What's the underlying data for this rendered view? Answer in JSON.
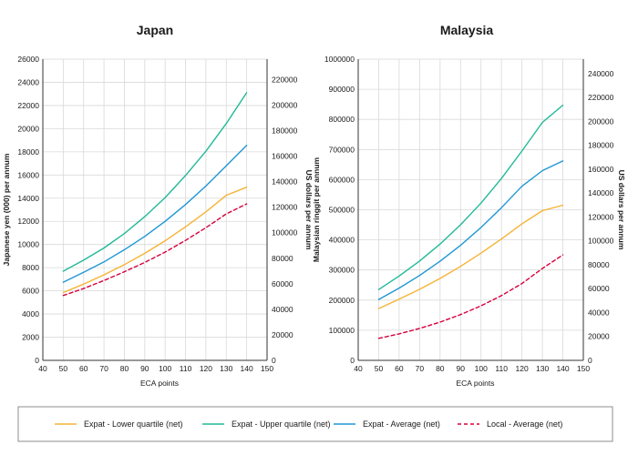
{
  "legend": [
    {
      "name": "Expat - Lower quartile (net)",
      "color": "#F5B335",
      "dash": false
    },
    {
      "name": "Expat - Upper quartile (net)",
      "color": "#22B998",
      "dash": false
    },
    {
      "name": "Expat - Average (net)",
      "color": "#1F97D4",
      "dash": false
    },
    {
      "name": "Local - Average (net)",
      "color": "#D6003C",
      "dash": true
    }
  ],
  "chart_data": [
    {
      "type": "line",
      "title": "Japan",
      "xlabel": "ECA points",
      "ylabel": "Japanese yen (000) per annum",
      "y2label": "US dollars per annum",
      "xlim": [
        40,
        150
      ],
      "ylim": [
        0,
        26000
      ],
      "y2lim": [
        0,
        236000
      ],
      "xticks": [
        40,
        50,
        60,
        70,
        80,
        90,
        100,
        110,
        120,
        130,
        140,
        150
      ],
      "yticks": [
        0,
        2000,
        4000,
        6000,
        8000,
        10000,
        12000,
        14000,
        16000,
        18000,
        20000,
        22000,
        24000,
        26000
      ],
      "y2ticks": [
        0,
        20000,
        40000,
        60000,
        80000,
        100000,
        120000,
        140000,
        160000,
        180000,
        200000,
        220000
      ],
      "grid": true,
      "x": [
        50,
        60,
        70,
        80,
        90,
        100,
        110,
        120,
        130,
        140
      ],
      "series": [
        {
          "name": "Expat - Lower quartile (net)",
          "values": [
            5850,
            6580,
            7380,
            8260,
            9240,
            10320,
            11520,
            12820,
            14250,
            14950
          ]
        },
        {
          "name": "Expat - Upper quartile (net)",
          "values": [
            7700,
            8650,
            9700,
            10950,
            12400,
            14050,
            15950,
            18050,
            20450,
            23100
          ]
        },
        {
          "name": "Expat - Average (net)",
          "values": [
            6750,
            7600,
            8500,
            9550,
            10700,
            12000,
            13450,
            15050,
            16800,
            18550
          ]
        },
        {
          "name": "Local - Average (net)",
          "values": [
            5600,
            6200,
            6900,
            7650,
            8450,
            9350,
            10350,
            11450,
            12650,
            13500
          ]
        }
      ]
    },
    {
      "type": "line",
      "title": "Malaysia",
      "xlabel": "ECA points",
      "ylabel": "Malaysian ringgit per annum",
      "y2label": "US dollars per annum",
      "xlim": [
        40,
        150
      ],
      "ylim": [
        0,
        1000000
      ],
      "y2lim": [
        0,
        252000
      ],
      "xticks": [
        40,
        50,
        60,
        70,
        80,
        90,
        100,
        110,
        120,
        130,
        140,
        150
      ],
      "yticks": [
        0,
        100000,
        200000,
        300000,
        400000,
        500000,
        600000,
        700000,
        800000,
        900000,
        1000000
      ],
      "y2ticks": [
        0,
        20000,
        40000,
        60000,
        80000,
        100000,
        120000,
        140000,
        160000,
        180000,
        200000,
        220000,
        240000
      ],
      "grid": true,
      "x": [
        50,
        60,
        70,
        80,
        90,
        100,
        110,
        120,
        130,
        140
      ],
      "series": [
        {
          "name": "Expat - Lower quartile (net)",
          "values": [
            172000,
            203000,
            236000,
            272000,
            312000,
            356000,
            403000,
            453000,
            497000,
            515000
          ]
        },
        {
          "name": "Expat - Upper quartile (net)",
          "values": [
            235000,
            280000,
            330000,
            386000,
            450000,
            522000,
            604000,
            695000,
            790000,
            847000
          ]
        },
        {
          "name": "Expat - Average (net)",
          "values": [
            202000,
            240000,
            282000,
            329000,
            382000,
            441000,
            507000,
            578000,
            630000,
            662000
          ]
        },
        {
          "name": "Local - Average (net)",
          "values": [
            73000,
            88000,
            106000,
            127000,
            152000,
            181000,
            215000,
            255000,
            305000,
            350000
          ]
        }
      ]
    }
  ]
}
